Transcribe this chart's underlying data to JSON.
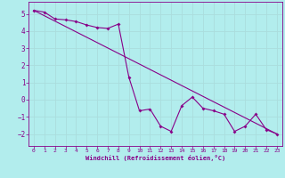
{
  "xlabel": "Windchill (Refroidissement éolien,°C)",
  "background_color": "#b2eded",
  "plot_color": "#880088",
  "grid_color": "#aadddd",
  "xlim": [
    -0.5,
    23.5
  ],
  "ylim": [
    -2.7,
    5.7
  ],
  "yticks": [
    -2,
    -1,
    0,
    1,
    2,
    3,
    4,
    5
  ],
  "xticks": [
    0,
    1,
    2,
    3,
    4,
    5,
    6,
    7,
    8,
    9,
    10,
    11,
    12,
    13,
    14,
    15,
    16,
    17,
    18,
    19,
    20,
    21,
    22,
    23
  ],
  "line1_x": [
    0,
    1,
    2,
    3,
    4,
    5,
    6,
    7,
    8,
    9,
    10,
    11,
    12,
    13,
    14,
    15,
    16,
    17,
    18,
    19,
    20,
    21,
    22,
    23
  ],
  "line1_y": [
    5.2,
    5.1,
    4.7,
    4.65,
    4.55,
    4.35,
    4.2,
    4.15,
    4.4,
    1.3,
    -0.65,
    -0.55,
    -1.55,
    -1.85,
    -0.35,
    0.15,
    -0.5,
    -0.65,
    -0.85,
    -1.85,
    -1.55,
    -0.85,
    -1.75,
    -2.0
  ],
  "line2_x": [
    0,
    23
  ],
  "line2_y": [
    5.2,
    -2.0
  ]
}
